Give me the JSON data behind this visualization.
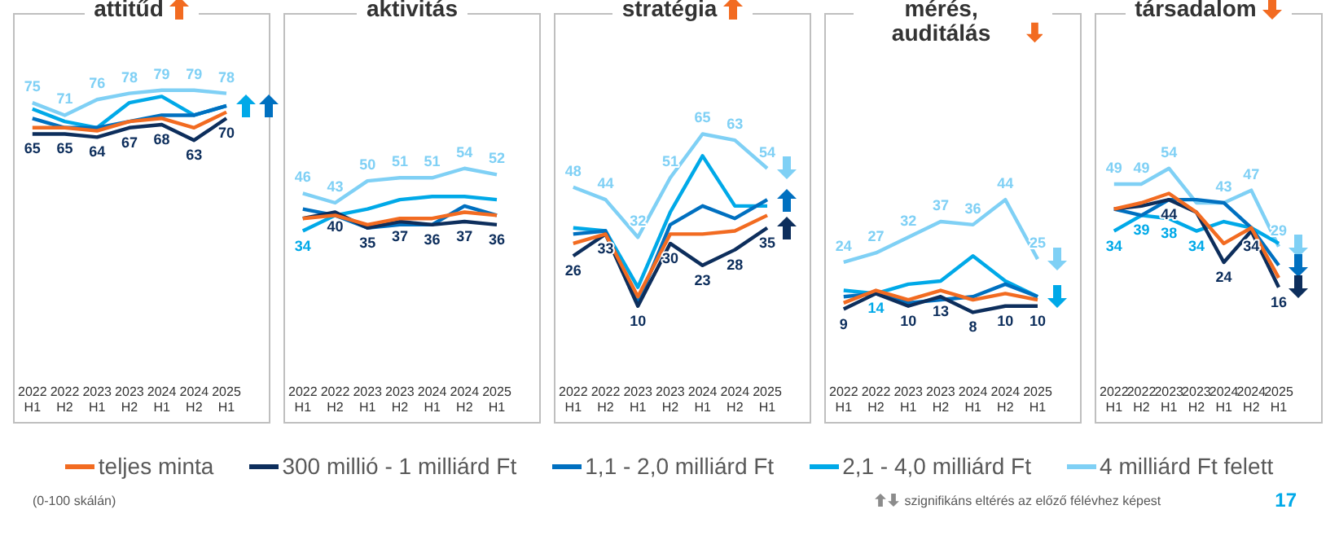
{
  "chart_data": [
    {
      "type": "line",
      "title": "attitűd",
      "categories": [
        "2022 H1",
        "2022 H2",
        "2023 H1",
        "2023 H2",
        "2024 H1",
        "2024 H2",
        "2025 H1"
      ],
      "tick_labels": "x",
      "legend": "bottom",
      "marker": "none",
      "annotations": [
        "(0-100 skálán)",
        "szignifikáns eltérés az előző félévhez képest",
        "17"
      ],
      "series": [
        {
          "name": "teljes minta",
          "color": "#f26b21",
          "values": [
            67,
            67,
            66,
            69,
            70,
            67,
            72
          ]
        },
        {
          "name": "300 millió - 1 milliárd Ft",
          "color": "#0d2e5c",
          "values": [
            65,
            65,
            64,
            67,
            68,
            63,
            70
          ],
          "value_labels": [
            "65",
            "65",
            "64",
            "67",
            "68",
            "63",
            "70"
          ]
        },
        {
          "name": "1,1 - 2,0 milliárd Ft",
          "color": "#0070c0",
          "values": [
            70,
            67,
            67,
            69,
            71,
            71,
            74
          ]
        },
        {
          "name": "2,1 - 4,0 milliárd Ft",
          "color": "#00a9e8",
          "values": [
            73,
            69,
            67,
            75,
            77,
            71,
            74
          ]
        },
        {
          "name": "4 milliárd Ft felett",
          "color": "#7fd0f5",
          "values": [
            75,
            71,
            76,
            78,
            79,
            79,
            78
          ],
          "value_labels": [
            "75",
            "71",
            "76",
            "78",
            "79",
            "79",
            "78"
          ]
        }
      ]
    },
    {
      "type": "line",
      "title": "aktivitás",
      "categories": [
        "2022 H1",
        "2022 H2",
        "2023 H1",
        "2023 H2",
        "2024 H1",
        "2024 H2",
        "2025 H1"
      ],
      "tick_labels": "x",
      "marker": "none",
      "series": [
        {
          "color": "#f26b21",
          "values": [
            38,
            39,
            36,
            38,
            38,
            40,
            39
          ]
        },
        {
          "color": "#0d2e5c",
          "values": [
            38,
            40,
            35,
            37,
            36,
            37,
            36
          ],
          "value_labels": [
            null,
            "40",
            "35",
            "37",
            "36",
            "37",
            "36"
          ]
        },
        {
          "color": "#0070c0",
          "values": [
            41,
            39,
            35,
            36,
            36,
            42,
            39
          ]
        },
        {
          "color": "#00a9e8",
          "values": [
            34,
            39,
            41,
            44,
            45,
            45,
            44
          ],
          "value_labels": [
            "34",
            null,
            null,
            null,
            null,
            null,
            null
          ]
        },
        {
          "color": "#7fd0f5",
          "values": [
            46,
            43,
            50,
            51,
            51,
            54,
            52
          ],
          "value_labels": [
            "46",
            "43",
            "50",
            "51",
            "51",
            "54",
            "52"
          ]
        }
      ]
    },
    {
      "type": "line",
      "title": "stratégia",
      "categories": [
        "2022 H1",
        "2022 H2",
        "2023 H1",
        "2023 H2",
        "2024 H1",
        "2024 H2",
        "2025 H1"
      ],
      "tick_labels": "x",
      "marker": "none",
      "series": [
        {
          "color": "#f26b21",
          "values": [
            30,
            33,
            13,
            33,
            33,
            34,
            39
          ]
        },
        {
          "color": "#0d2e5c",
          "values": [
            26,
            33,
            10,
            30,
            23,
            28,
            35
          ],
          "value_labels": [
            "26",
            "33",
            "10",
            "30",
            "23",
            "28",
            "35"
          ]
        },
        {
          "color": "#0070c0",
          "values": [
            33,
            34,
            11,
            36,
            42,
            38,
            44
          ]
        },
        {
          "color": "#00a9e8",
          "values": [
            35,
            34,
            16,
            40,
            58,
            42,
            42
          ]
        },
        {
          "color": "#7fd0f5",
          "values": [
            48,
            44,
            32,
            51,
            65,
            63,
            54
          ],
          "value_labels": [
            "48",
            "44",
            "32",
            "51",
            "65",
            "63",
            "54"
          ]
        }
      ]
    },
    {
      "type": "line",
      "title": "mérés, auditálás",
      "categories": [
        "2022 H1",
        "2022 H2",
        "2023 H1",
        "2023 H2",
        "2024 H1",
        "2024 H2",
        "2025 H1"
      ],
      "tick_labels": "x",
      "marker": "none",
      "series": [
        {
          "color": "#f26b21",
          "values": [
            11,
            15,
            12,
            15,
            12,
            14,
            12
          ]
        },
        {
          "color": "#0d2e5c",
          "values": [
            9,
            14,
            10,
            13,
            8,
            10,
            10
          ],
          "value_labels": [
            "9",
            null,
            "10",
            "13",
            "8",
            "10",
            "10"
          ]
        },
        {
          "color": "#0070c0",
          "values": [
            13,
            14,
            11,
            12,
            13,
            17,
            13
          ]
        },
        {
          "color": "#00a9e8",
          "values": [
            15,
            14,
            17,
            18,
            26,
            18,
            13
          ],
          "value_labels": [
            null,
            "14",
            null,
            null,
            null,
            null,
            null
          ]
        },
        {
          "color": "#7fd0f5",
          "values": [
            24,
            27,
            32,
            37,
            36,
            44,
            25
          ],
          "value_labels": [
            "24",
            "27",
            "32",
            "37",
            "36",
            "44",
            "25"
          ]
        }
      ]
    },
    {
      "type": "line",
      "title": "társadalom",
      "categories": [
        "2022 H1",
        "2022 H2",
        "2023 H1",
        "2023 H2",
        "2024 H1",
        "2024 H2",
        "2025 H1"
      ],
      "tick_labels": "x",
      "marker": "none",
      "series": [
        {
          "color": "#f26b21",
          "values": [
            41,
            43,
            46,
            40,
            30,
            35,
            19
          ]
        },
        {
          "color": "#0d2e5c",
          "values": [
            41,
            42,
            44,
            40,
            24,
            34,
            16
          ],
          "value_labels": [
            null,
            null,
            "44",
            null,
            "24",
            "34",
            "16"
          ]
        },
        {
          "color": "#0070c0",
          "values": [
            41,
            39,
            44,
            44,
            43,
            35,
            23
          ]
        },
        {
          "color": "#00a9e8",
          "values": [
            34,
            39,
            38,
            34,
            37,
            35,
            30
          ],
          "value_labels": [
            "34",
            "39",
            "38",
            "34",
            null,
            null,
            null
          ]
        },
        {
          "color": "#7fd0f5",
          "values": [
            49,
            49,
            54,
            43,
            43,
            47,
            29
          ],
          "value_labels": [
            "49",
            "49",
            "54",
            null,
            "43",
            "47",
            "29"
          ]
        }
      ]
    }
  ]
}
